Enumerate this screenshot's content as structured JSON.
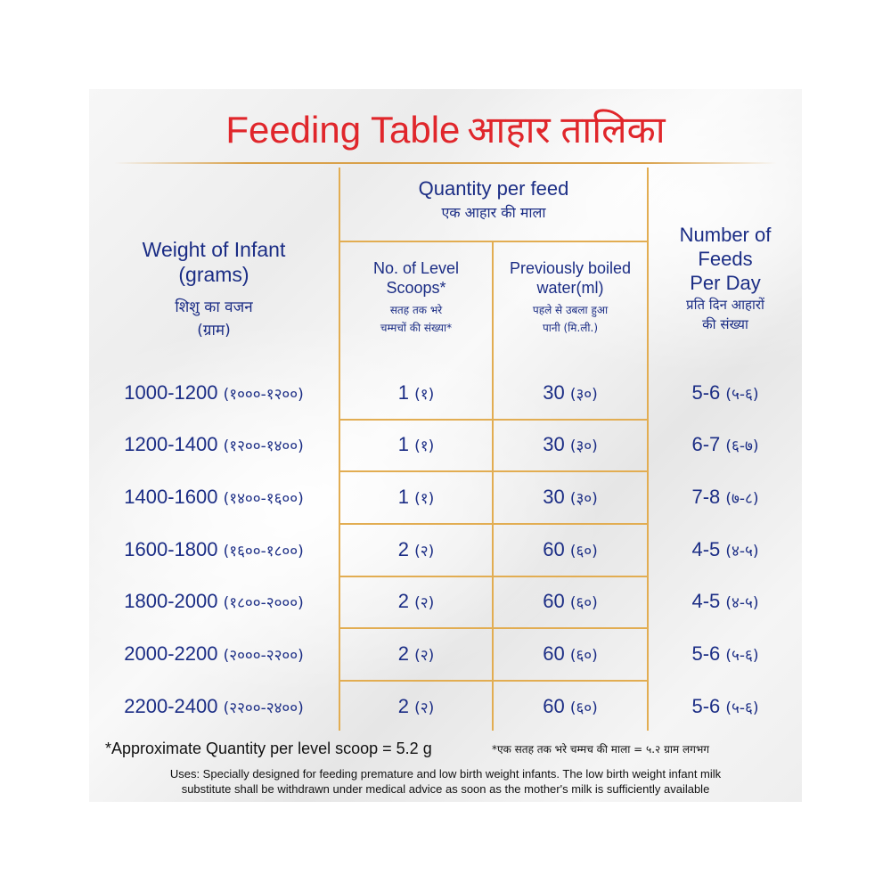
{
  "title": {
    "en": "Feeding Table",
    "hi": "आहार तालिका"
  },
  "headers": {
    "weight": {
      "en1": "Weight of Infant",
      "en2": "(grams)",
      "hi1": "शिशु का वजन",
      "hi2": "(ग्राम)"
    },
    "quantity": {
      "en": "Quantity per feed",
      "hi": "एक आहार की माला"
    },
    "scoops": {
      "en1": "No. of Level",
      "en2": "Scoops*",
      "hi1": "सतह तक भरे",
      "hi2": "चम्मचों की संख्या*"
    },
    "water": {
      "en1": "Previously boiled",
      "en2": "water(ml)",
      "hi1": "पहले से उबला हुआ",
      "hi2": "पानी (मि.ली.)"
    },
    "feeds": {
      "en1": "Number of",
      "en2": "Feeds",
      "en3": "Per Day",
      "hi1": "प्रति दिन आहारों",
      "hi2": "की संख्या"
    }
  },
  "rows": [
    {
      "weight": "1000-1200",
      "weight_hi": "(१०००-१२००)",
      "scoops": "1",
      "scoops_hi": "(१)",
      "water": "30",
      "water_hi": "(३०)",
      "feeds": "5-6",
      "feeds_hi": "(५-६)"
    },
    {
      "weight": "1200-1400",
      "weight_hi": "(१२००-१४००)",
      "scoops": "1",
      "scoops_hi": "(१)",
      "water": "30",
      "water_hi": "(३०)",
      "feeds": "6-7",
      "feeds_hi": "(६-७)"
    },
    {
      "weight": "1400-1600",
      "weight_hi": "(१४००-१६००)",
      "scoops": "1",
      "scoops_hi": "(१)",
      "water": "30",
      "water_hi": "(३०)",
      "feeds": "7-8",
      "feeds_hi": "(७-८)"
    },
    {
      "weight": "1600-1800",
      "weight_hi": "(१६००-१८००)",
      "scoops": "2",
      "scoops_hi": "(२)",
      "water": "60",
      "water_hi": "(६०)",
      "feeds": "4-5",
      "feeds_hi": "(४-५)"
    },
    {
      "weight": "1800-2000",
      "weight_hi": "(१८००-२०००)",
      "scoops": "2",
      "scoops_hi": "(२)",
      "water": "60",
      "water_hi": "(६०)",
      "feeds": "4-5",
      "feeds_hi": "(४-५)"
    },
    {
      "weight": "2000-2200",
      "weight_hi": "(२०००-२२००)",
      "scoops": "2",
      "scoops_hi": "(२)",
      "water": "60",
      "water_hi": "(६०)",
      "feeds": "5-6",
      "feeds_hi": "(५-६)"
    },
    {
      "weight": "2200-2400",
      "weight_hi": "(२२००-२४००)",
      "scoops": "2",
      "scoops_hi": "(२)",
      "water": "60",
      "water_hi": "(६०)",
      "feeds": "5-6",
      "feeds_hi": "(५-६)"
    }
  ],
  "footnote": {
    "en": "*Approximate Quantity per level scoop = 5.2 g",
    "hi": "*एक सतह तक भरे चम्मच की माला = ५.२ ग्राम लगभग"
  },
  "uses": {
    "line1": "Uses: Specially designed for feeding premature and low birth weight infants. The low birth weight infant milk",
    "line2": "substitute shall be withdrawn under medical advice as soon as the mother's milk is sufficiently available"
  },
  "colors": {
    "title": "#e0262b",
    "text": "#1b2d85",
    "rule": "#e2ad52"
  }
}
